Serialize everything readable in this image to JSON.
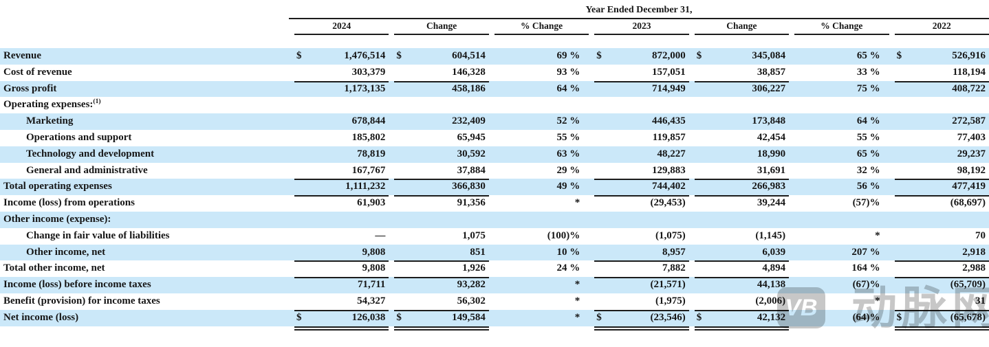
{
  "header": {
    "group_title": "Year Ended December 31,",
    "columns": [
      "2024",
      "Change",
      "% Change",
      "2023",
      "Change",
      "% Change",
      "2022"
    ]
  },
  "table": {
    "currency_symbol": "$",
    "rows": [
      {
        "label": "Revenue",
        "indent": 0,
        "shaded": true,
        "dollar": true,
        "rule": "none",
        "values": [
          "1,476,514",
          "604,514",
          "69 %",
          "872,000",
          "345,084",
          "65 %",
          "526,916"
        ]
      },
      {
        "label": "Cost of revenue",
        "indent": 0,
        "shaded": false,
        "dollar": false,
        "rule": "single",
        "values": [
          "303,379",
          "146,328",
          "93 %",
          "157,051",
          "38,857",
          "33 %",
          "118,194"
        ]
      },
      {
        "label": "Gross profit",
        "indent": 0,
        "shaded": true,
        "dollar": false,
        "rule": "none",
        "values": [
          "1,173,135",
          "458,186",
          "64 %",
          "714,949",
          "306,227",
          "75 %",
          "408,722"
        ]
      },
      {
        "label": "Operating expenses:",
        "sup": "(1)",
        "indent": 0,
        "shaded": false,
        "dollar": false,
        "rule": "none",
        "values": [
          "",
          "",
          "",
          "",
          "",
          "",
          ""
        ]
      },
      {
        "label": "Marketing",
        "indent": 1,
        "shaded": true,
        "dollar": false,
        "rule": "none",
        "values": [
          "678,844",
          "232,409",
          "52 %",
          "446,435",
          "173,848",
          "64 %",
          "272,587"
        ]
      },
      {
        "label": "Operations and support",
        "indent": 1,
        "shaded": false,
        "dollar": false,
        "rule": "none",
        "values": [
          "185,802",
          "65,945",
          "55 %",
          "119,857",
          "42,454",
          "55 %",
          "77,403"
        ]
      },
      {
        "label": "Technology and development",
        "indent": 1,
        "shaded": true,
        "dollar": false,
        "rule": "none",
        "values": [
          "78,819",
          "30,592",
          "63 %",
          "48,227",
          "18,990",
          "65 %",
          "29,237"
        ]
      },
      {
        "label": "General and administrative",
        "indent": 1,
        "shaded": false,
        "dollar": false,
        "rule": "single",
        "values": [
          "167,767",
          "37,884",
          "29 %",
          "129,883",
          "31,691",
          "32 %",
          "98,192"
        ]
      },
      {
        "label": "Total operating expenses",
        "indent": 0,
        "shaded": true,
        "dollar": false,
        "rule": "single",
        "values": [
          "1,111,232",
          "366,830",
          "49 %",
          "744,402",
          "266,983",
          "56 %",
          "477,419"
        ]
      },
      {
        "label": "Income (loss) from operations",
        "indent": 0,
        "shaded": false,
        "dollar": false,
        "rule": "none",
        "values": [
          "61,903",
          "91,356",
          "*",
          "(29,453)",
          "39,244",
          "(57)%",
          "(68,697)"
        ]
      },
      {
        "label": "Other income (expense):",
        "indent": 0,
        "shaded": true,
        "dollar": false,
        "rule": "none",
        "values": [
          "",
          "",
          "",
          "",
          "",
          "",
          ""
        ]
      },
      {
        "label": "Change in fair value of liabilities",
        "indent": 1,
        "shaded": false,
        "dollar": false,
        "rule": "none",
        "values": [
          "—",
          "1,075",
          "(100)%",
          "(1,075)",
          "(1,145)",
          "*",
          "70"
        ]
      },
      {
        "label": "Other income, net",
        "indent": 1,
        "shaded": true,
        "dollar": false,
        "rule": "single",
        "values": [
          "9,808",
          "851",
          "10 %",
          "8,957",
          "6,039",
          "207 %",
          "2,918"
        ]
      },
      {
        "label": "Total other income, net",
        "indent": 0,
        "shaded": false,
        "dollar": false,
        "rule": "single",
        "values": [
          "9,808",
          "1,926",
          "24 %",
          "7,882",
          "4,894",
          "164 %",
          "2,988"
        ]
      },
      {
        "label": "Income (loss) before income taxes",
        "indent": 0,
        "shaded": true,
        "dollar": false,
        "rule": "none",
        "values": [
          "71,711",
          "93,282",
          "*",
          "(21,571)",
          "44,138",
          "(67)%",
          "(65,709)"
        ]
      },
      {
        "label": "Benefit (provision) for income taxes",
        "indent": 0,
        "shaded": false,
        "dollar": false,
        "rule": "single",
        "values": [
          "54,327",
          "56,302",
          "*",
          "(1,975)",
          "(2,006)",
          "*",
          "31"
        ]
      },
      {
        "label": "Net income (loss)",
        "indent": 0,
        "shaded": true,
        "dollar": true,
        "rule": "double",
        "values": [
          "126,038",
          "149,584",
          "*",
          "(23,546)",
          "42,132",
          "(64)%",
          "(65,678)"
        ]
      }
    ]
  },
  "watermark": {
    "logo_text": "VB",
    "text": "动脉网"
  },
  "colors": {
    "band_blue": "#cbe8f9",
    "rule_color": "#1c1c1c",
    "watermark_gray": "#c7c7c7"
  }
}
